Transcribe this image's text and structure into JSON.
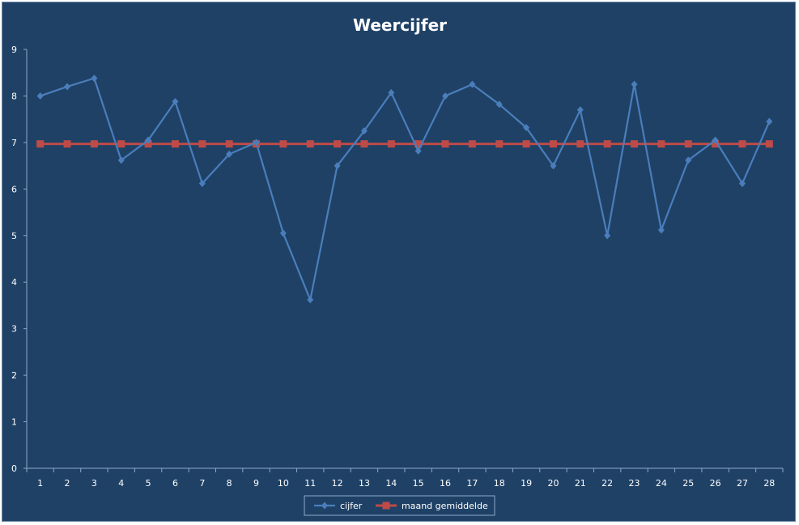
{
  "chart_data": {
    "type": "line",
    "title": "Weercijfer",
    "xlabel": "",
    "ylabel": "",
    "categories": [
      "1",
      "2",
      "3",
      "4",
      "5",
      "6",
      "7",
      "8",
      "9",
      "10",
      "11",
      "12",
      "13",
      "14",
      "15",
      "16",
      "17",
      "18",
      "19",
      "20",
      "21",
      "22",
      "23",
      "24",
      "25",
      "26",
      "27",
      "28"
    ],
    "ylim": [
      0,
      9
    ],
    "yticks": [
      "0",
      "1",
      "2",
      "3",
      "4",
      "5",
      "6",
      "7",
      "8",
      "9"
    ],
    "grid": false,
    "legend_position": "bottom",
    "series": [
      {
        "name": "cijfer",
        "color": "#4a7ebb",
        "marker": "diamond",
        "values": [
          8.0,
          8.2,
          8.38,
          6.62,
          7.05,
          7.88,
          6.12,
          6.75,
          7.0,
          5.05,
          3.62,
          6.5,
          7.25,
          8.07,
          6.82,
          8.0,
          8.25,
          7.82,
          7.32,
          6.5,
          7.7,
          5.0,
          8.25,
          5.12,
          6.62,
          7.05,
          6.12,
          7.45
        ]
      },
      {
        "name": "maand gemiddelde",
        "color": "#be4b48",
        "marker": "square",
        "values": [
          6.97,
          6.97,
          6.97,
          6.97,
          6.97,
          6.97,
          6.97,
          6.97,
          6.97,
          6.97,
          6.97,
          6.97,
          6.97,
          6.97,
          6.97,
          6.97,
          6.97,
          6.97,
          6.97,
          6.97,
          6.97,
          6.97,
          6.97,
          6.97,
          6.97,
          6.97,
          6.97,
          6.97
        ]
      }
    ],
    "background_color": "#1f4166",
    "axis_color": "#8ea9c9"
  }
}
